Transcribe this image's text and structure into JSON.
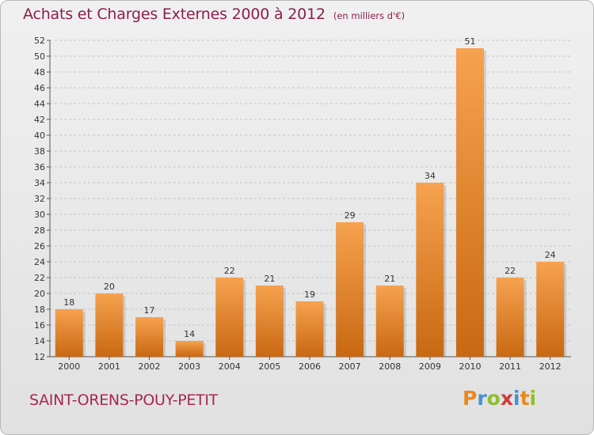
{
  "header": {
    "title": "Achats et Charges Externes 2000 à 2012",
    "subtitle": "(en milliers d'€)"
  },
  "footer": {
    "commune": "SAINT-ORENS-POUY-PETIT",
    "logo_text": "Proxiti",
    "logo_colors": [
      "#e8891d",
      "#4b8fd0",
      "#8fbf2e",
      "#d23b3b",
      "#4b8fd0",
      "#e8891d",
      "#8fbf2e"
    ]
  },
  "chart_data": {
    "type": "bar",
    "title": "Achats et Charges Externes 2000 à 2012",
    "subtitle": "(en milliers d'€)",
    "xlabel": "",
    "ylabel": "",
    "categories": [
      "2000",
      "2001",
      "2002",
      "2003",
      "2004",
      "2005",
      "2006",
      "2007",
      "2008",
      "2009",
      "2010",
      "2011",
      "2012"
    ],
    "values": [
      18,
      20,
      17,
      14,
      22,
      21,
      19,
      29,
      21,
      34,
      51,
      22,
      24
    ],
    "ylim": [
      12,
      52
    ],
    "yticks": [
      12,
      14,
      16,
      18,
      20,
      22,
      24,
      26,
      28,
      30,
      32,
      34,
      36,
      38,
      40,
      42,
      44,
      46,
      48,
      50,
      52
    ],
    "grid": true,
    "bar_color_top": "#f6a24f",
    "bar_color_bottom": "#c96812"
  }
}
